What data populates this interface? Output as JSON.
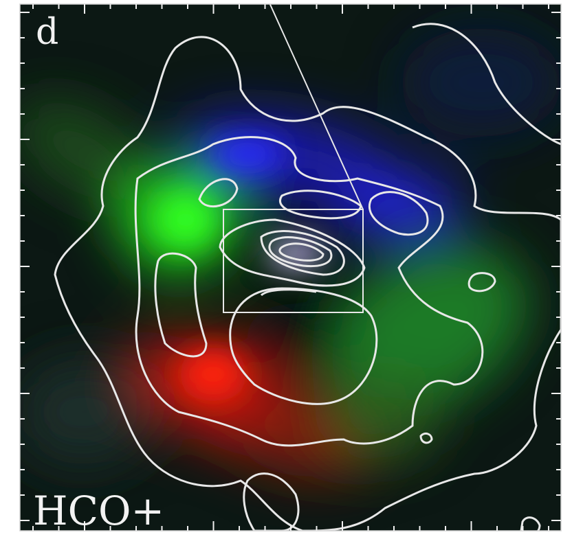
{
  "panel_label": "d",
  "molecule": "HCO+"
}
